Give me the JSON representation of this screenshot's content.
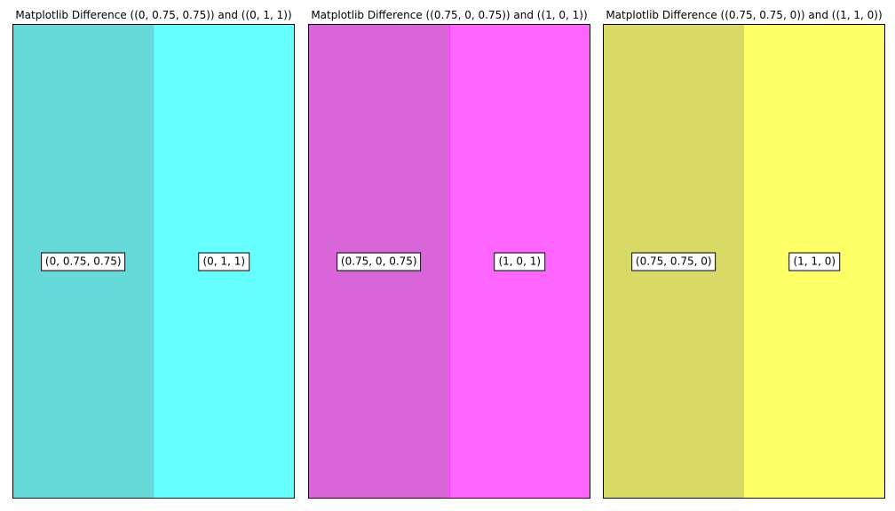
{
  "chart_data": [
    {
      "type": "table",
      "title": "Matplotlib Difference ((0, 0.75, 0.75)) and ((0, 1, 1))",
      "swatches": [
        {
          "label": "(0, 0.75, 0.75)",
          "color": "#66d9d9",
          "edge": "#66d9d9"
        },
        {
          "label": "(0, 1, 1)",
          "color": "#66ffff",
          "edge": "#33ffff"
        }
      ]
    },
    {
      "type": "table",
      "title": "Matplotlib Difference ((0.75, 0, 0.75)) and ((1, 0, 1))",
      "swatches": [
        {
          "label": "(0.75, 0, 0.75)",
          "color": "#d966d9",
          "edge": "#d966d9"
        },
        {
          "label": "(1, 0, 1)",
          "color": "#ff66ff",
          "edge": "#ff33ff"
        }
      ]
    },
    {
      "type": "table",
      "title": "Matplotlib Difference ((0.75, 0.75, 0)) and ((1, 1, 0))",
      "swatches": [
        {
          "label": "(0.75, 0.75, 0)",
          "color": "#d9d966",
          "edge": "#d9d966"
        },
        {
          "label": "(1, 1, 0)",
          "color": "#ffff66",
          "edge": "#ffff66"
        }
      ]
    }
  ]
}
